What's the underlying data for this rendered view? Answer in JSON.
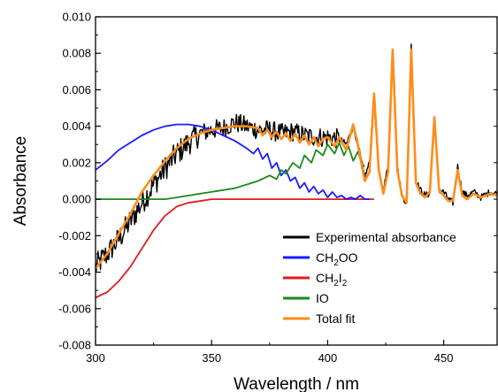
{
  "chart_data": {
    "type": "line",
    "xlabel": "Wavelength / nm",
    "ylabel": "Absorbance",
    "xlim": [
      300,
      473
    ],
    "ylim": [
      -0.008,
      0.01
    ],
    "xticks": [
      300,
      350,
      400,
      450
    ],
    "xtick_labels": [
      "300",
      "350",
      "400",
      "450"
    ],
    "yticks": [
      -0.008,
      -0.006,
      -0.004,
      -0.002,
      0.0,
      0.002,
      0.004,
      0.006,
      0.008,
      0.01
    ],
    "ytick_labels": [
      "-0.008",
      "-0.006",
      "-0.004",
      "-0.002",
      "0.000",
      "0.002",
      "0.004",
      "0.006",
      "0.008",
      "0.010"
    ],
    "grid": false,
    "legend_position": "bottom-right",
    "legend": [
      {
        "label": "Experimental absorbance",
        "sub": "",
        "tail": ""
      },
      {
        "label": "CH",
        "sub": "2",
        "tail": "OO"
      },
      {
        "label": "CH",
        "sub": "2",
        "tail": "I2"
      },
      {
        "label": "IO",
        "sub": "",
        "tail": ""
      },
      {
        "label": "Total fit",
        "sub": "",
        "tail": ""
      }
    ],
    "series": [
      {
        "name": "Experimental absorbance",
        "color": "#000000",
        "noisy": true,
        "x": [
          300,
          305,
          310,
          315,
          320,
          325,
          330,
          335,
          340,
          345,
          350,
          355,
          360,
          365,
          370,
          375,
          380,
          385,
          390,
          395,
          400,
          405,
          408,
          411,
          413,
          416,
          418,
          420,
          422,
          424,
          426,
          428,
          430,
          432,
          434,
          436,
          438,
          440,
          442,
          444,
          446,
          448,
          450,
          452,
          454,
          456,
          458,
          460,
          463,
          466,
          470,
          473
        ],
        "y": [
          -0.0037,
          -0.003,
          -0.0022,
          -0.0012,
          -0.0002,
          0.0008,
          0.0017,
          0.0025,
          0.0031,
          0.0036,
          0.0038,
          0.0039,
          0.0042,
          0.004,
          0.0038,
          0.0038,
          0.0036,
          0.0037,
          0.0035,
          0.0034,
          0.0034,
          0.0033,
          0.003,
          0.004,
          0.003,
          0.0012,
          0.002,
          0.0054,
          0.0015,
          0.0005,
          0.0018,
          0.0083,
          0.0018,
          0.0002,
          -0.0002,
          0.0084,
          0.001,
          0.0005,
          0.0002,
          0.0003,
          0.0046,
          0.0005,
          0.0004,
          0.0,
          -0.0002,
          0.0018,
          0.0004,
          0.0002,
          0.0004,
          0.0001,
          0.0004,
          0.0003
        ]
      },
      {
        "name": "CH2OO",
        "color": "#1a1aff",
        "noisy": false,
        "x": [
          300,
          305,
          310,
          315,
          320,
          325,
          330,
          335,
          340,
          345,
          350,
          355,
          360,
          365,
          368,
          370,
          372,
          374,
          376,
          378,
          380,
          382,
          384,
          386,
          388,
          390,
          392,
          394,
          396,
          398,
          400,
          402,
          404,
          406,
          408,
          410,
          412,
          414,
          416,
          418
        ],
        "y": [
          0.0016,
          0.0021,
          0.0027,
          0.0031,
          0.0035,
          0.0038,
          0.004,
          0.0041,
          0.0041,
          0.004,
          0.0038,
          0.0035,
          0.0032,
          0.0028,
          0.0025,
          0.0028,
          0.0022,
          0.0025,
          0.0017,
          0.002,
          0.0013,
          0.0016,
          0.001,
          0.0012,
          0.0006,
          0.0009,
          0.0004,
          0.0007,
          0.0003,
          0.0005,
          0.0001,
          0.0004,
          0.0001,
          0.0002,
          0.0,
          0.0001,
          0.0,
          0.0002,
          0.0,
          0.0
        ]
      },
      {
        "name": "CH2I2",
        "color": "#e31a1c",
        "noisy": false,
        "x": [
          300,
          305,
          310,
          315,
          320,
          325,
          330,
          335,
          340,
          345,
          350,
          355,
          360,
          370,
          380,
          390,
          400,
          410,
          420
        ],
        "y": [
          -0.0054,
          -0.0051,
          -0.0045,
          -0.0037,
          -0.0027,
          -0.0017,
          -0.0009,
          -0.0004,
          -0.0002,
          -0.0001,
          0.0,
          0.0,
          0.0,
          0.0,
          0.0,
          0.0,
          0.0,
          0.0,
          0.0
        ]
      },
      {
        "name": "IO",
        "color": "#1a8a1a",
        "noisy": false,
        "x": [
          300,
          320,
          330,
          335,
          340,
          345,
          350,
          355,
          360,
          365,
          370,
          375,
          378,
          380,
          382,
          385,
          388,
          390,
          393,
          395,
          398,
          400,
          403,
          405,
          407,
          409,
          411,
          413,
          415,
          416
        ],
        "y": [
          0.0,
          0.0,
          0.0,
          0.0001,
          0.0002,
          0.0003,
          0.0004,
          0.0005,
          0.0006,
          0.0008,
          0.001,
          0.0013,
          0.0011,
          0.0016,
          0.0014,
          0.002,
          0.0017,
          0.0024,
          0.002,
          0.0027,
          0.0024,
          0.003,
          0.0025,
          0.0031,
          0.0024,
          0.0029,
          0.0021,
          0.0026,
          0.0019,
          0.0018
        ]
      },
      {
        "name": "Total fit",
        "color": "#ff8c1a",
        "noisy": false,
        "x": [
          300,
          305,
          310,
          315,
          320,
          325,
          330,
          335,
          340,
          345,
          350,
          355,
          360,
          365,
          370,
          372,
          374,
          376,
          378,
          380,
          382,
          384,
          386,
          388,
          390,
          392,
          394,
          396,
          398,
          400,
          403,
          405,
          408,
          411,
          413,
          416,
          418,
          420,
          422,
          424,
          426,
          428,
          430,
          432,
          434,
          436,
          438,
          440,
          442,
          444,
          446,
          448,
          450,
          452,
          454,
          456,
          458,
          460,
          463,
          466,
          470,
          473
        ],
        "y": [
          -0.0038,
          -0.003,
          -0.0019,
          -0.0008,
          0.0004,
          0.0013,
          0.0021,
          0.0028,
          0.0033,
          0.0036,
          0.0038,
          0.0039,
          0.004,
          0.004,
          0.0039,
          0.0035,
          0.0038,
          0.0034,
          0.0037,
          0.0033,
          0.0036,
          0.0032,
          0.0036,
          0.0031,
          0.0035,
          0.003,
          0.0034,
          0.0029,
          0.0033,
          0.0034,
          0.0029,
          0.0034,
          0.0027,
          0.0041,
          0.003,
          0.001,
          0.0015,
          0.0058,
          0.0016,
          0.0003,
          0.0015,
          0.0082,
          0.0016,
          0.0002,
          -0.0002,
          0.0082,
          0.0009,
          0.0003,
          0.0001,
          0.0004,
          0.0045,
          0.0005,
          0.0002,
          -0.0001,
          -0.0001,
          0.0016,
          0.0002,
          0.0,
          0.0003,
          0.0001,
          0.0003,
          0.0002
        ]
      }
    ]
  }
}
